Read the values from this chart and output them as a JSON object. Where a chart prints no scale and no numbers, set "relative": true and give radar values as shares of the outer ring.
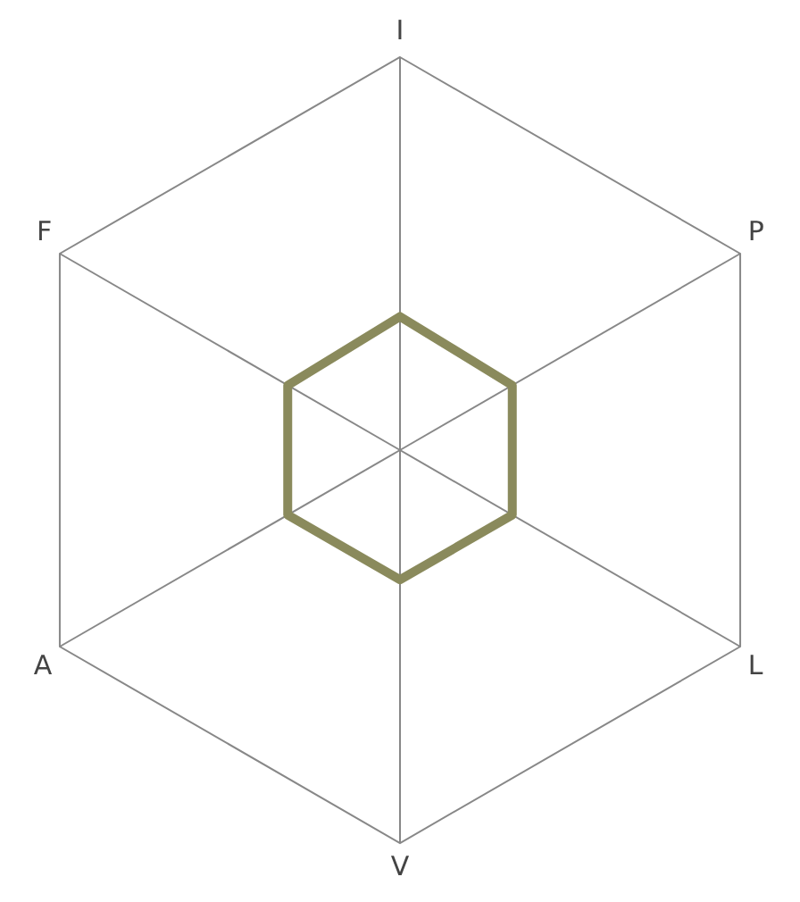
{
  "chart_data": {
    "type": "radar",
    "relative": true,
    "categories": [
      "I",
      "P",
      "L",
      "V",
      "A",
      "F"
    ],
    "series": [
      {
        "color": "#8a8a5c",
        "values": [
          0.34,
          0.33,
          0.33,
          0.33,
          0.33,
          0.33
        ]
      }
    ],
    "grid": true,
    "legend": false
  }
}
